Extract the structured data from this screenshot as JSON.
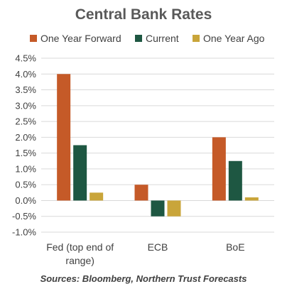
{
  "chart_data": {
    "type": "bar",
    "title": "Central Bank Rates",
    "categories": [
      "Fed (top end of range)",
      "ECB",
      "BoE"
    ],
    "category_lines": [
      [
        "Fed (top end of",
        "range)"
      ],
      [
        "ECB"
      ],
      [
        "BoE"
      ]
    ],
    "series": [
      {
        "name": "One Year Forward",
        "color": "#c55a28",
        "values": [
          4.0,
          0.5,
          2.0
        ]
      },
      {
        "name": "Current",
        "color": "#1e5742",
        "values": [
          1.75,
          -0.5,
          1.25
        ]
      },
      {
        "name": "One Year Ago",
        "color": "#c9a53a",
        "values": [
          0.25,
          -0.5,
          0.1
        ]
      }
    ],
    "ylim": [
      -1.0,
      4.5
    ],
    "yticks": [
      -1.0,
      -0.5,
      0.0,
      0.5,
      1.0,
      1.5,
      2.0,
      2.5,
      3.0,
      3.5,
      4.0,
      4.5
    ],
    "ytick_labels": [
      "-1.0%",
      "-0.5%",
      "0.0%",
      "0.5%",
      "1.0%",
      "1.5%",
      "2.0%",
      "2.5%",
      "3.0%",
      "3.5%",
      "4.0%",
      "4.5%"
    ],
    "grid": true,
    "legend_position": "top",
    "source": "Sources: Bloomberg, Northern Trust Forecasts"
  }
}
